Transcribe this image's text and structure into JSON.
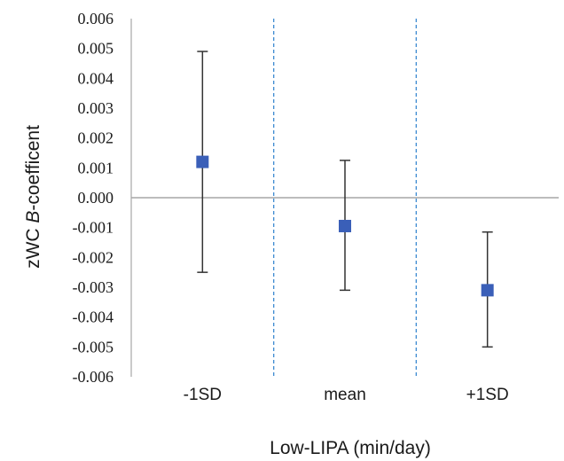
{
  "chart_data": {
    "type": "scatter",
    "categories": [
      "-1SD",
      "mean",
      "+1SD"
    ],
    "series": [
      {
        "values": [
          0.0012,
          -0.00095,
          -0.0031
        ],
        "error_lower": [
          -0.0025,
          -0.0031,
          -0.005
        ],
        "error_upper": [
          0.0049,
          0.00125,
          -0.00115
        ],
        "color": "#3a5fb8"
      }
    ],
    "ylim": [
      -0.006,
      0.006
    ],
    "yticks": [
      "0.006",
      "0.005",
      "0.004",
      "0.003",
      "0.002",
      "0.001",
      "0.000",
      "-0.001",
      "-0.002",
      "-0.003",
      "-0.004",
      "-0.005",
      "-0.006"
    ],
    "ylabel_prefix": "zWC ",
    "ylabel_italic": "B",
    "ylabel_suffix": "-coefficent",
    "xlabel": "Low-LIPA (min/day)",
    "zero_line": true,
    "category_separators": "dashed",
    "separator_color": "#3d8bd1",
    "axis_color": "#a6a6a6",
    "errorbar_color": "#333333"
  }
}
